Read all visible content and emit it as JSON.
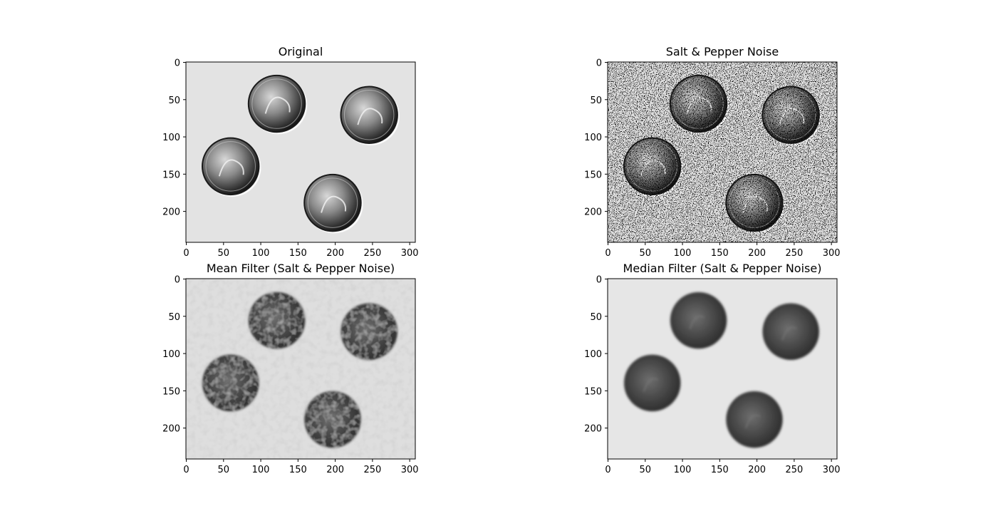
{
  "panels": [
    {
      "title": "Original",
      "style": "original"
    },
    {
      "title": "Salt & Pepper Noise",
      "style": "noisy"
    },
    {
      "title": "Mean Filter (Salt & Pepper Noise)",
      "style": "mean"
    },
    {
      "title": "Median Filter (Salt & Pepper Noise)",
      "style": "median"
    }
  ],
  "x_ticks": [
    "0",
    "50",
    "100",
    "150",
    "200",
    "250",
    "300"
  ],
  "y_ticks": [
    "0",
    "50",
    "100",
    "150",
    "200"
  ],
  "image_extent": {
    "width": 308,
    "height": 242
  },
  "coins": [
    {
      "cx": 122,
      "cy": 56,
      "r": 38
    },
    {
      "cx": 246,
      "cy": 71,
      "r": 38
    },
    {
      "cx": 60,
      "cy": 140,
      "r": 38
    },
    {
      "cx": 197,
      "cy": 189,
      "r": 38
    }
  ]
}
